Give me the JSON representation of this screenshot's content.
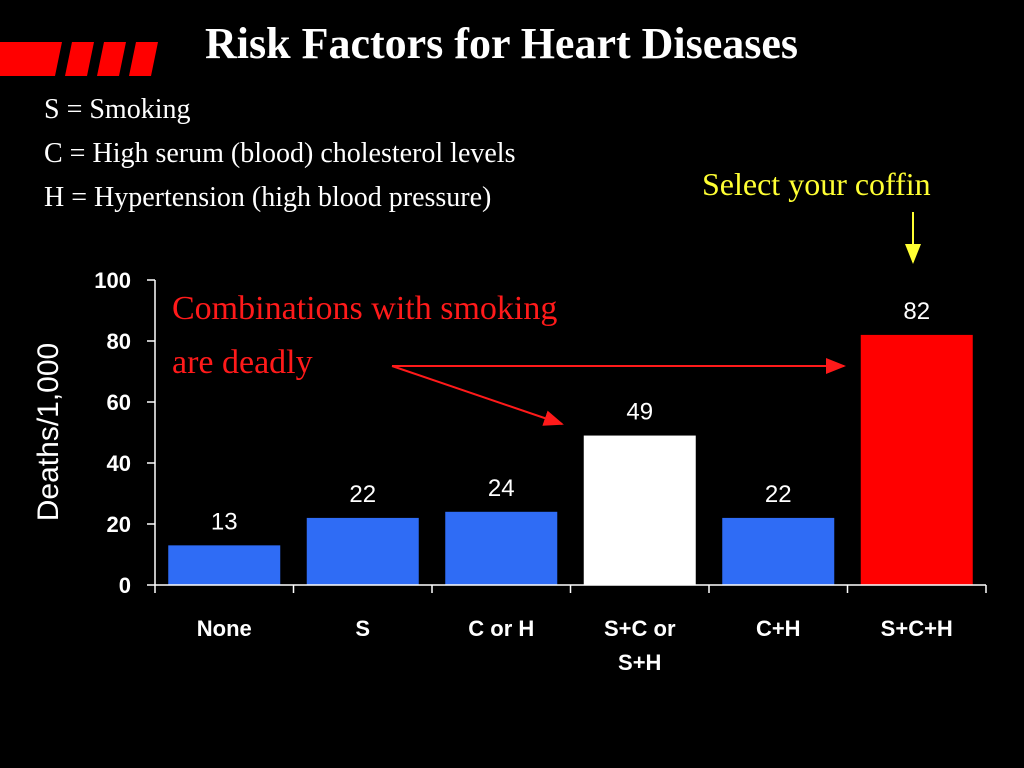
{
  "slide": {
    "title": "Risk Factors for Heart Diseases",
    "legend_lines": [
      "S = Smoking",
      "C = High serum (blood) cholesterol levels",
      "H = Hypertension (high blood pressure)"
    ],
    "coffin_note": "Select your coffin",
    "combo_note_lines": [
      "Combinations with smoking",
      "are deadly"
    ],
    "colors": {
      "background": "#000000",
      "title": "#ffffff",
      "coffin_note": "#ffff33",
      "combo_note": "#ff1a1a",
      "stripes": "#ff0000"
    }
  },
  "chart_data": {
    "type": "bar",
    "ylabel": "Deaths/1,000",
    "xlabel": "",
    "ylim": [
      0,
      100
    ],
    "yticks": [
      0,
      20,
      40,
      60,
      80,
      100
    ],
    "categories": [
      [
        "None"
      ],
      [
        "S"
      ],
      [
        "C or H"
      ],
      [
        "S+C or",
        "S+H"
      ],
      [
        "C+H"
      ],
      [
        "S+C+H"
      ]
    ],
    "values": [
      13,
      22,
      24,
      49,
      22,
      82
    ],
    "data_labels": [
      "13",
      "22",
      "24",
      "49",
      "22",
      "82"
    ],
    "bar_colors": [
      "#2f6cf5",
      "#2f6cf5",
      "#2f6cf5",
      "#ffffff",
      "#2f6cf5",
      "#ff0000"
    ],
    "grid": false,
    "annotations": [
      {
        "text": "Combinations with smoking are deadly",
        "color": "#ff1a1a",
        "points_to": [
          "S+C or S+H",
          "S+C+H"
        ]
      },
      {
        "text": "Select your coffin",
        "color": "#ffff33",
        "points_to": [
          "S+C+H"
        ]
      }
    ]
  }
}
